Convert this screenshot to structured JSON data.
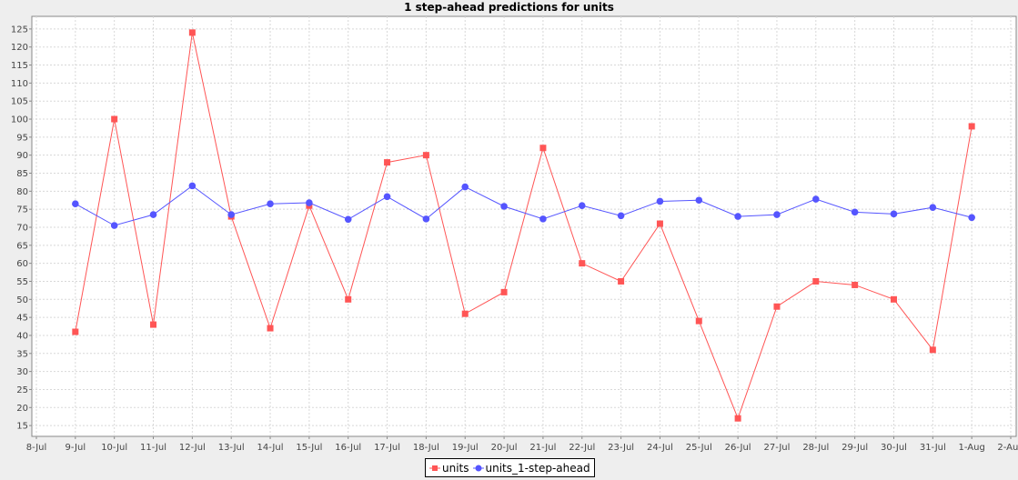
{
  "chart_data": {
    "type": "line",
    "title": "1 step-ahead predictions for units",
    "xlabel": "",
    "ylabel": "",
    "x": [
      "8-Jul",
      "9-Jul",
      "10-Jul",
      "11-Jul",
      "12-Jul",
      "13-Jul",
      "14-Jul",
      "15-Jul",
      "16-Jul",
      "17-Jul",
      "18-Jul",
      "19-Jul",
      "20-Jul",
      "21-Jul",
      "22-Jul",
      "23-Jul",
      "24-Jul",
      "25-Jul",
      "26-Jul",
      "27-Jul",
      "28-Jul",
      "29-Jul",
      "30-Jul",
      "31-Jul",
      "1-Aug",
      "2-Aug"
    ],
    "y_ticks": [
      15,
      20,
      25,
      30,
      35,
      40,
      45,
      50,
      55,
      60,
      65,
      70,
      75,
      80,
      85,
      90,
      95,
      100,
      105,
      110,
      115,
      120,
      125
    ],
    "ylim": [
      12,
      128.5
    ],
    "grid": true,
    "legend_position": "bottom",
    "series": [
      {
        "name": "units",
        "color": "#ff5555",
        "marker": "square",
        "values": [
          null,
          41,
          100,
          43,
          124,
          73,
          42,
          76,
          50,
          88,
          90,
          46,
          52,
          92,
          60,
          55,
          71,
          44,
          17,
          48,
          55,
          54,
          50,
          36,
          98,
          null
        ]
      },
      {
        "name": "units_1-step-ahead",
        "color": "#5555ff",
        "marker": "circle",
        "values": [
          null,
          76.5,
          70.5,
          73.5,
          81.5,
          73.5,
          76.5,
          76.8,
          72.2,
          78.5,
          72.3,
          81.2,
          75.8,
          72.3,
          76,
          73.2,
          77.2,
          77.5,
          73,
          73.5,
          77.8,
          74.2,
          73.7,
          75.5,
          72.7,
          null
        ]
      }
    ]
  }
}
